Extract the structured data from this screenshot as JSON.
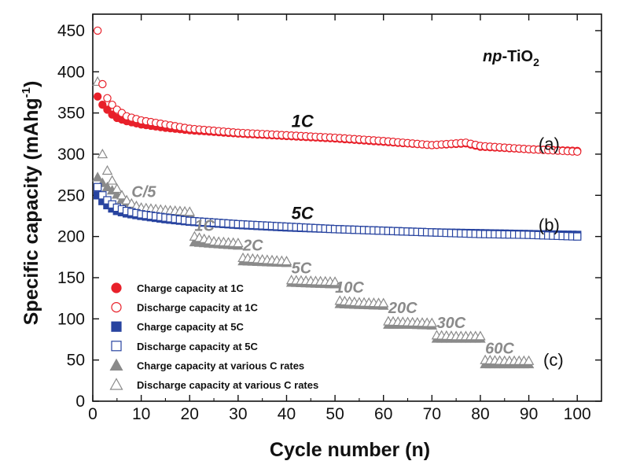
{
  "chart_data": {
    "type": "scatter",
    "title_prefix": "np",
    "title_main": "-TiO",
    "title_sub": "2",
    "xlabel": "Cycle number (n)",
    "ylabel_main": "Specific capacity (mAhg",
    "ylabel_sup": "-1",
    "ylabel_end": ")",
    "xlim": [
      0,
      105
    ],
    "ylim": [
      0,
      470
    ],
    "xticks": [
      0,
      10,
      20,
      30,
      40,
      50,
      60,
      70,
      80,
      90,
      100
    ],
    "yticks": [
      0,
      50,
      100,
      150,
      200,
      250,
      300,
      350,
      400,
      450
    ],
    "legend_position": "bottom-left",
    "series": [
      {
        "name": "Charge capacity at 1C",
        "marker": "circle",
        "filled": true,
        "color": "#e8202a",
        "cycles": [
          1,
          100
        ],
        "points": [
          [
            1,
            370
          ],
          [
            2,
            360
          ],
          [
            3,
            354
          ],
          [
            4,
            348
          ],
          [
            5,
            344
          ],
          [
            7,
            340
          ],
          [
            10,
            336
          ],
          [
            15,
            332
          ],
          [
            20,
            329
          ],
          [
            30,
            325
          ],
          [
            40,
            322
          ],
          [
            50,
            319
          ],
          [
            60,
            315
          ],
          [
            70,
            311
          ],
          [
            77,
            313
          ],
          [
            80,
            309
          ],
          [
            90,
            306
          ],
          [
            100,
            304
          ]
        ]
      },
      {
        "name": "Discharge capacity at 1C",
        "marker": "circle",
        "filled": false,
        "color": "#e8202a",
        "cycles": [
          1,
          100
        ],
        "points": [
          [
            1,
            450
          ],
          [
            2,
            385
          ],
          [
            3,
            368
          ],
          [
            4,
            360
          ],
          [
            5,
            354
          ],
          [
            7,
            346
          ],
          [
            10,
            341
          ],
          [
            15,
            336
          ],
          [
            20,
            331
          ],
          [
            30,
            326
          ],
          [
            40,
            323
          ],
          [
            50,
            320
          ],
          [
            60,
            316
          ],
          [
            70,
            311
          ],
          [
            77,
            314
          ],
          [
            80,
            310
          ],
          [
            90,
            306
          ],
          [
            100,
            303
          ]
        ]
      },
      {
        "name": "Charge capacity at 5C",
        "marker": "square",
        "filled": true,
        "color": "#2844a0",
        "cycles": [
          1,
          100
        ],
        "points": [
          [
            1,
            250
          ],
          [
            2,
            243
          ],
          [
            3,
            238
          ],
          [
            4,
            234
          ],
          [
            5,
            231
          ],
          [
            7,
            228
          ],
          [
            10,
            225
          ],
          [
            15,
            221
          ],
          [
            20,
            218
          ],
          [
            30,
            214
          ],
          [
            40,
            211
          ],
          [
            50,
            209
          ],
          [
            60,
            207
          ],
          [
            70,
            205
          ],
          [
            80,
            204
          ],
          [
            90,
            203
          ],
          [
            100,
            202
          ]
        ]
      },
      {
        "name": "Discharge capacity at 5C",
        "marker": "square",
        "filled": false,
        "color": "#2844a0",
        "cycles": [
          1,
          100
        ],
        "points": [
          [
            1,
            260
          ],
          [
            2,
            250
          ],
          [
            3,
            244
          ],
          [
            4,
            239
          ],
          [
            5,
            235
          ],
          [
            7,
            231
          ],
          [
            10,
            227
          ],
          [
            15,
            223
          ],
          [
            20,
            219
          ],
          [
            30,
            215
          ],
          [
            40,
            212
          ],
          [
            50,
            209
          ],
          [
            60,
            207
          ],
          [
            70,
            205
          ],
          [
            80,
            203
          ],
          [
            90,
            202
          ],
          [
            100,
            200
          ]
        ]
      },
      {
        "name": "Charge capacity at various C rates",
        "marker": "triangle",
        "filled": true,
        "color": "#8a8a8a",
        "cycles": [
          1,
          90
        ],
        "points": [
          [
            1,
            272
          ],
          [
            2,
            265
          ],
          [
            3,
            260
          ],
          [
            4,
            256
          ],
          [
            5,
            251
          ],
          [
            6,
            245
          ],
          [
            7,
            241
          ],
          [
            8,
            237
          ],
          [
            9,
            235
          ],
          [
            10,
            233
          ],
          [
            15,
            230
          ],
          [
            20,
            228
          ],
          [
            21,
            193
          ],
          [
            25,
            191
          ],
          [
            30,
            189
          ],
          [
            31,
            170
          ],
          [
            35,
            169
          ],
          [
            40,
            168
          ],
          [
            41,
            144
          ],
          [
            45,
            143
          ],
          [
            50,
            142
          ],
          [
            51,
            118
          ],
          [
            55,
            117
          ],
          [
            60,
            116
          ],
          [
            61,
            93
          ],
          [
            65,
            93
          ],
          [
            70,
            92
          ],
          [
            71,
            76
          ],
          [
            75,
            76
          ],
          [
            80,
            76
          ],
          [
            81,
            45
          ],
          [
            85,
            45
          ],
          [
            90,
            45
          ]
        ]
      },
      {
        "name": "Discharge capacity at various C rates",
        "marker": "triangle",
        "filled": false,
        "color": "#8a8a8a",
        "cycles": [
          1,
          90
        ],
        "points": [
          [
            1,
            388
          ],
          [
            2,
            300
          ],
          [
            3,
            280
          ],
          [
            4,
            268
          ],
          [
            5,
            258
          ],
          [
            6,
            250
          ],
          [
            7,
            244
          ],
          [
            8,
            240
          ],
          [
            9,
            237
          ],
          [
            10,
            235
          ],
          [
            15,
            232
          ],
          [
            20,
            230
          ],
          [
            21,
            200
          ],
          [
            25,
            194
          ],
          [
            30,
            192
          ],
          [
            31,
            174
          ],
          [
            35,
            172
          ],
          [
            40,
            170
          ],
          [
            41,
            147
          ],
          [
            45,
            146
          ],
          [
            50,
            145
          ],
          [
            51,
            122
          ],
          [
            55,
            120
          ],
          [
            60,
            119
          ],
          [
            61,
            97
          ],
          [
            65,
            96
          ],
          [
            70,
            95
          ],
          [
            71,
            80
          ],
          [
            75,
            79
          ],
          [
            80,
            79
          ],
          [
            81,
            50
          ],
          [
            85,
            49
          ],
          [
            90,
            49
          ]
        ]
      }
    ],
    "annotations": {
      "rate_labels": [
        {
          "text": "C/5",
          "x": 8,
          "y": 248
        },
        {
          "text": "1C",
          "x": 21,
          "y": 207
        },
        {
          "text": "2C",
          "x": 31,
          "y": 183
        },
        {
          "text": "5C",
          "x": 41,
          "y": 155
        },
        {
          "text": "10C",
          "x": 50,
          "y": 132
        },
        {
          "text": "20C",
          "x": 61,
          "y": 107
        },
        {
          "text": "30C",
          "x": 71,
          "y": 89
        },
        {
          "text": "60C",
          "x": 81,
          "y": 58
        }
      ],
      "series_labels": [
        {
          "text": "1C",
          "x": 41,
          "y": 333
        },
        {
          "text": "5C",
          "x": 41,
          "y": 221
        }
      ],
      "panel_labels": [
        {
          "text": "(a)",
          "x": 92,
          "y": 305
        },
        {
          "text": "(b)",
          "x": 92,
          "y": 207
        },
        {
          "text": "(c)",
          "x": 93,
          "y": 43
        }
      ]
    }
  }
}
